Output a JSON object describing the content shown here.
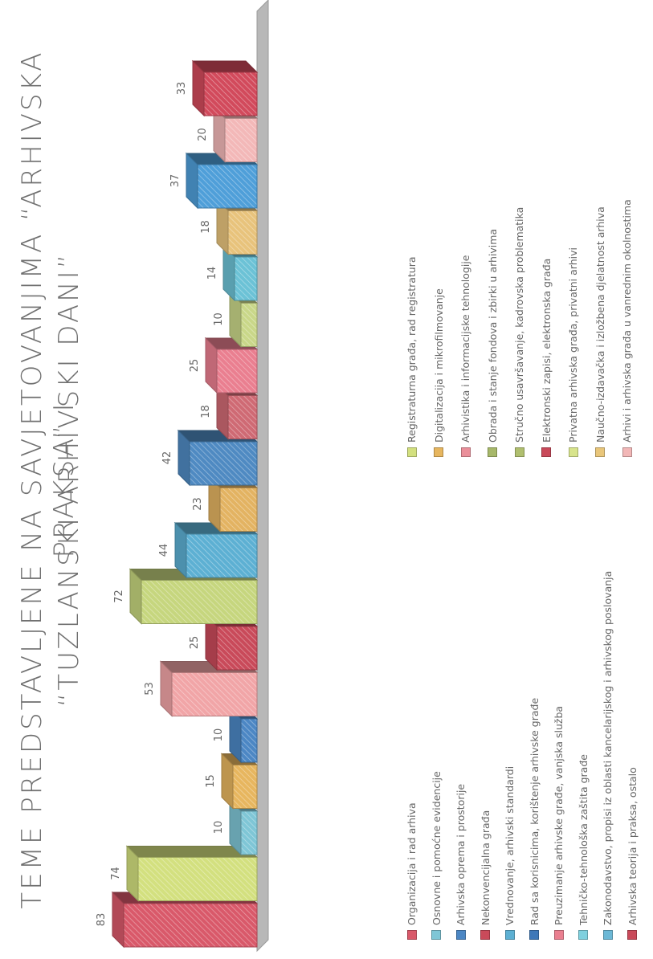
{
  "title": {
    "line1": "TEME PREDSTAVLJENE NA SAVJETOVANJIMA “ARHIVSKA PRAKSA” I",
    "line2": "“TUZLANSKI ARHIVSKI DANI”"
  },
  "chart_data": {
    "type": "bar",
    "title": "TEME PREDSTAVLJENE NA SAVJETOVANJIMA “ARHIVSKA PRAKSA” I “TUZLANSKI ARHIVSKI DANI”",
    "orientation": "rotated 90° counter-clockwise",
    "style": "3D hatched bars",
    "categories": [
      "Organizacija i rad arhiva",
      "Osnovne i pomoćne evidencije",
      "Arhivska oprema i prostorije",
      "Nekonvencijalna građa",
      "Vrednovanje, arhivski standardi",
      "Rad sa korisnicima, korištenje arhivske građe",
      "Preuzimanje arhivske građe, vanjska služba",
      "Tehničko-tehnološka zaštita građe",
      "Zakonodavstvo, propisi iz oblasti kancelarijskog i arhivskog poslovanja",
      "Arhivska teorija i praksa, ostalo",
      "Registraturna građa, rad registratura",
      "Digitalizacija i mikrofilmovanje",
      "Arhivistika i informacijske tehnologije",
      "Obrada i stanje fondova i zbirki u arhivima",
      "Stručno usavršavanje, kadrovska problematika",
      "Elektronski zapisi, elektronska građa",
      "Privatna arhivska građa, privatni arhivi",
      "Naučno-izdavačka i izložbena djelatnost arhiva",
      "Arhivi i arhivska građa u vanrednim okolnostima"
    ],
    "bar_labels": [
      "Arhivska teorija i praksa, ostalo",
      "Organizacija i rad arhiva",
      "Zakonodavstvo, propisi iz oblasti kancelarijskog i arhivskog poslovanja",
      "Tehničko-tehnološka zaštita građe",
      "Preuzimanje arhivske građe, vanjska služba",
      "Rad sa korisnicima, korištenje arhivske građe",
      "Vrednovanje, arhivski standardi",
      "Nekonvencijalna građa",
      "Arhivska oprema i prostorije",
      "Osnovne i pomoćne evidencije",
      "Registraturna građa, rad registratura",
      "Digitalizacija i mikrofilmovanje",
      "Arhivistika i informacijske tehnologije",
      "Obrada i stanje fondova i zbirki u arhivima",
      "Stručno usavršavanje, kadrovska problematika",
      "Elektronski zapisi, elektronska građa",
      "Privatna arhivska građa, privatni arhivi",
      "Naučno-izdavačka i izložbena djelatnost arhiva",
      "Arhivi i arhivska građa u vanrednim okolnostima"
    ],
    "values": [
      83,
      74,
      10,
      15,
      10,
      53,
      25,
      72,
      44,
      23,
      42,
      18,
      25,
      10,
      14,
      18,
      37,
      20,
      33
    ],
    "colors": [
      "#d9596a",
      "#d3e07f",
      "#7fc6d6",
      "#e7b65f",
      "#4c87c4",
      "#f1a5a7",
      "#c94a5a",
      "#c6d67e",
      "#5db0d3",
      "#e3b362",
      "#4f8ac2",
      "#cf6a74",
      "#ea7f90",
      "#c9d789",
      "#6cc2d6",
      "#e8c37c",
      "#4f9fd9",
      "#f3b8b8",
      "#d24a5c"
    ],
    "ylim": [
      0,
      90
    ],
    "grid": false,
    "legend_position": "bottom"
  },
  "legend": {
    "left": [
      {
        "label": "Organizacija i rad arhiva",
        "color": "#d9596a"
      },
      {
        "label": "Osnovne i pomoćne evidencije",
        "color": "#7fc6d6"
      },
      {
        "label": "Arhivska oprema i prostorije",
        "color": "#4c87c4"
      },
      {
        "label": "Nekonvencijalna građa",
        "color": "#c94a5a"
      },
      {
        "label": "Vrednovanje, arhivski standardi",
        "color": "#5db0d3"
      },
      {
        "label": "Rad sa korisnicima, korištenje arhivske građe",
        "color": "#3f78b8"
      },
      {
        "label": "Preuzimanje arhivske građe, vanjska služba",
        "color": "#ea7f90"
      },
      {
        "label": "Tehničko-tehnološka zaštita građe",
        "color": "#7fd0de"
      },
      {
        "label": "Zakonodavstvo, propisi iz oblasti kancelarijskog i arhivskog poslovanja",
        "color": "#6cb8d6"
      },
      {
        "label": "Arhivska teorija i praksa, ostalo",
        "color": "#c94a5a"
      }
    ],
    "right": [
      {
        "label": "Registraturna građa, rad registratura",
        "color": "#d3e07f"
      },
      {
        "label": "Digitalizacija i mikrofilmovanje",
        "color": "#e7b65f"
      },
      {
        "label": "Arhivistika i informacijske tehnologije",
        "color": "#ea8f9a"
      },
      {
        "label": "Obrada i stanje fondova i zbirki u arhivima",
        "color": "#a7b86a"
      },
      {
        "label": "Stručno usavršavanje, kadrovska problematika",
        "color": "#b0bf6f"
      },
      {
        "label": "Elektronski zapisi, elektronska građa",
        "color": "#c94a5a"
      },
      {
        "label": "Privatna arhivska građa, privatni arhivi",
        "color": "#d8e48c"
      },
      {
        "label": "Naučno-izdavačka i izložbena djelatnost arhiva",
        "color": "#e9c67a"
      },
      {
        "label": "Arhivi i arhivska građa u vanrednim okolnostima",
        "color": "#f2b7b7"
      }
    ]
  }
}
